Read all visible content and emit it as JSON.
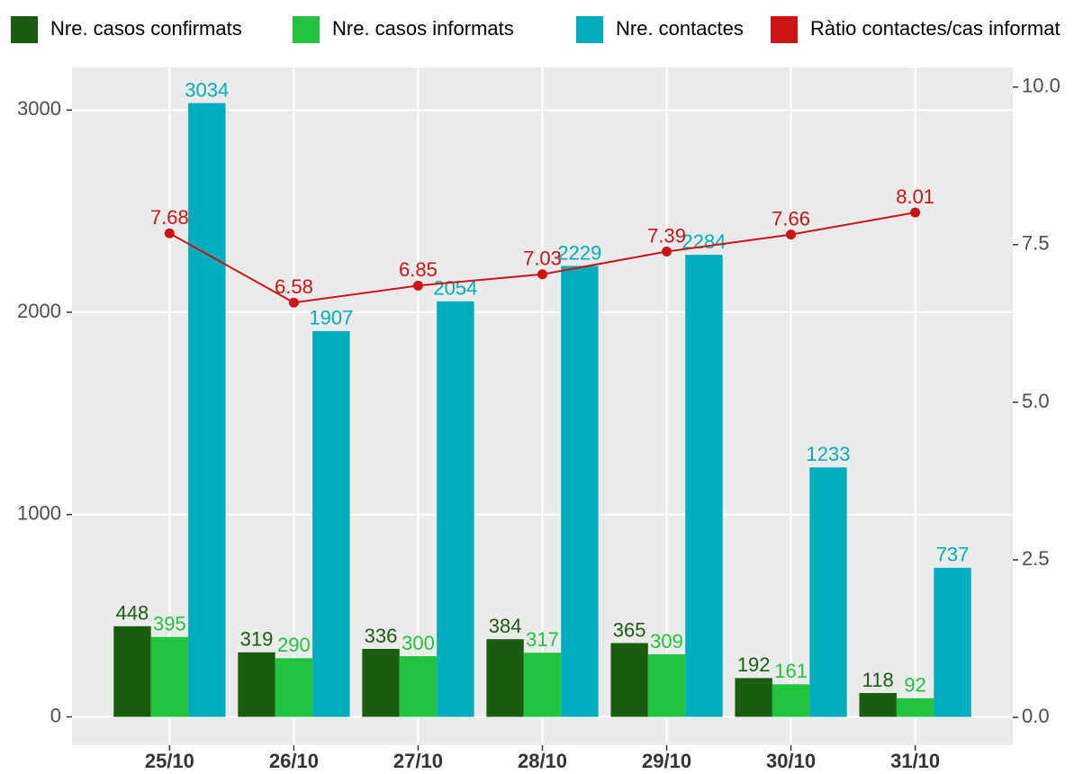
{
  "chart_data": {
    "type": "bar",
    "categories": [
      "25/10",
      "26/10",
      "27/10",
      "28/10",
      "29/10",
      "30/10",
      "31/10"
    ],
    "series": [
      {
        "name": "Nre. casos confirmats",
        "color": "#1a5c10",
        "values": [
          448,
          319,
          336,
          384,
          365,
          192,
          118
        ]
      },
      {
        "name": "Nre. casos informats",
        "color": "#22c33e",
        "values": [
          395,
          290,
          300,
          317,
          309,
          161,
          92
        ]
      },
      {
        "name": "Nre. contactes",
        "color": "#00adbc",
        "values": [
          3034,
          1907,
          2054,
          2229,
          2284,
          1233,
          737
        ]
      },
      {
        "name": "Ràtio contactes/cas informat",
        "color": "#cc1414",
        "type": "line",
        "axis": "y2",
        "values": [
          7.68,
          6.58,
          6.85,
          7.03,
          7.39,
          7.66,
          8.01
        ]
      }
    ],
    "ylim": [
      -140,
      3210
    ],
    "yticks": [
      0,
      1000,
      2000,
      3000
    ],
    "y2lim": [
      -0.44,
      10.31
    ],
    "y2ticks": [
      {
        "value": 0,
        "label": "0.0"
      },
      {
        "value": 2.5,
        "label": "2.5"
      },
      {
        "value": 5,
        "label": "5.0"
      },
      {
        "value": 7.5,
        "label": "7.5"
      },
      {
        "value": 10,
        "label": "10.0"
      }
    ],
    "grid": true,
    "legend": "top"
  }
}
